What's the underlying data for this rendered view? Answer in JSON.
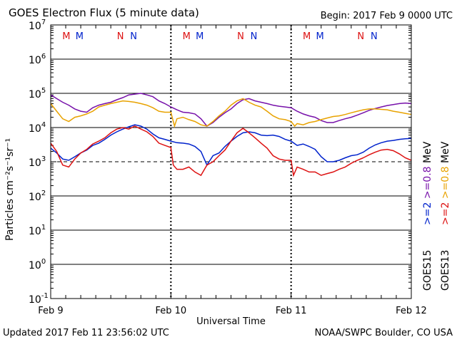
{
  "header": {
    "title": "GOES Electron Flux (5 minute data)",
    "begin": "Begin: 2017 Feb 9 0000 UTC"
  },
  "footer": {
    "updated": "Updated 2017 Feb 11 23:56:02 UTC",
    "credit": "NOAA/SWPC Boulder, CO USA"
  },
  "colors": {
    "goes15_2mev": "#0022cc",
    "goes13_2mev": "#dd1111",
    "goes15_08mev": "#7711aa",
    "goes13_08mev": "#e8a200",
    "marker_m": "#dd1111",
    "marker_m2": "#0022cc"
  },
  "chart_data": {
    "type": "line",
    "xlabel": "Universal Time",
    "ylabel": "Particles cm⁻²s⁻¹sr⁻¹",
    "y_scale": "log",
    "ylim": [
      0.1,
      10000000
    ],
    "y_ticks": [
      {
        "base": "10",
        "exp": "7"
      },
      {
        "base": "10",
        "exp": "6"
      },
      {
        "base": "10",
        "exp": "5"
      },
      {
        "base": "10",
        "exp": "4"
      },
      {
        "base": "10",
        "exp": "3"
      },
      {
        "base": "10",
        "exp": "2"
      },
      {
        "base": "10",
        "exp": "1"
      },
      {
        "base": "10",
        "exp": "0"
      },
      {
        "base": "10",
        "exp": "-1"
      }
    ],
    "xlim": [
      "2017-02-09",
      "2017-02-12"
    ],
    "x_ticks": [
      "Feb 9",
      "Feb 10",
      "Feb 11",
      "Feb 12"
    ],
    "threshold": 1000,
    "grid": true,
    "day_markers": [
      "M",
      "M",
      "N",
      "N"
    ],
    "legend": {
      "goes15": "GOES15",
      "goes13": "GOES13",
      "goes15_2": ">=2",
      "goes13_2": ">=2",
      "goes15_08": ">=0.8",
      "goes13_08": ">=0.8",
      "unit": "MeV"
    },
    "series": [
      {
        "key": "goes15_2mev",
        "x": [
          0,
          0.05,
          0.1,
          0.15,
          0.2,
          0.25,
          0.3,
          0.35,
          0.4,
          0.45,
          0.5,
          0.55,
          0.6,
          0.65,
          0.7,
          0.75,
          0.8,
          0.85,
          0.9,
          0.95,
          1.0,
          1.05,
          1.1,
          1.15,
          1.2,
          1.25,
          1.3,
          1.35,
          1.4,
          1.45,
          1.5,
          1.55,
          1.6,
          1.65,
          1.7,
          1.75,
          1.8,
          1.85,
          1.9,
          1.95,
          2.0,
          2.05,
          2.1,
          2.15,
          2.2,
          2.25,
          2.3,
          2.35,
          2.4,
          2.45,
          2.5,
          2.55,
          2.6,
          2.65,
          2.7,
          2.75,
          2.8,
          2.85,
          2.9,
          2.95,
          3.0
        ],
        "y": [
          2500,
          1800,
          1200,
          1100,
          1400,
          1800,
          2200,
          3000,
          3500,
          4500,
          6000,
          7500,
          9000,
          10500,
          12000,
          11000,
          9000,
          6500,
          5000,
          4500,
          4000,
          3600,
          3500,
          3300,
          2800,
          2000,
          800,
          1500,
          1800,
          2800,
          4000,
          5500,
          7000,
          7500,
          7000,
          6000,
          5800,
          6000,
          5500,
          4500,
          4000,
          3000,
          3300,
          2800,
          2300,
          1400,
          1000,
          1000,
          1100,
          1300,
          1500,
          1600,
          1900,
          2500,
          3100,
          3600,
          4000,
          4200,
          4500,
          4700,
          4800
        ]
      },
      {
        "key": "goes13_2mev",
        "x": [
          0,
          0.05,
          0.1,
          0.15,
          0.2,
          0.25,
          0.3,
          0.35,
          0.4,
          0.45,
          0.5,
          0.55,
          0.6,
          0.65,
          0.7,
          0.75,
          0.8,
          0.85,
          0.9,
          0.95,
          1.0,
          1.02,
          1.05,
          1.1,
          1.15,
          1.2,
          1.25,
          1.3,
          1.35,
          1.4,
          1.45,
          1.5,
          1.55,
          1.6,
          1.65,
          1.7,
          1.75,
          1.8,
          1.85,
          1.9,
          1.95,
          2.0,
          2.02,
          2.05,
          2.1,
          2.15,
          2.2,
          2.25,
          2.3,
          2.35,
          2.4,
          2.45,
          2.5,
          2.55,
          2.6,
          2.65,
          2.7,
          2.75,
          2.8,
          2.85,
          2.9,
          2.95,
          3.0
        ],
        "y": [
          3500,
          2000,
          800,
          700,
          1200,
          1800,
          2300,
          3300,
          4000,
          5000,
          7000,
          9000,
          10000,
          9000,
          11000,
          9000,
          7500,
          5500,
          3500,
          3000,
          2600,
          800,
          600,
          600,
          700,
          500,
          400,
          800,
          1000,
          1500,
          2200,
          4000,
          7000,
          9500,
          7000,
          5000,
          3500,
          2500,
          1500,
          1200,
          1100,
          1100,
          400,
          700,
          600,
          500,
          500,
          400,
          450,
          500,
          600,
          700,
          900,
          1100,
          1300,
          1600,
          1900,
          2200,
          2300,
          2100,
          1700,
          1300,
          1100
        ]
      },
      {
        "key": "goes15_08mev",
        "x": [
          0,
          0.05,
          0.1,
          0.15,
          0.2,
          0.25,
          0.3,
          0.35,
          0.4,
          0.45,
          0.5,
          0.55,
          0.6,
          0.65,
          0.7,
          0.75,
          0.8,
          0.85,
          0.9,
          0.95,
          1.0,
          1.05,
          1.1,
          1.15,
          1.2,
          1.25,
          1.3,
          1.35,
          1.4,
          1.45,
          1.5,
          1.55,
          1.6,
          1.65,
          1.7,
          1.75,
          1.8,
          1.85,
          1.9,
          1.95,
          2.0,
          2.05,
          2.1,
          2.15,
          2.2,
          2.25,
          2.3,
          2.35,
          2.4,
          2.45,
          2.5,
          2.55,
          2.6,
          2.65,
          2.7,
          2.75,
          2.8,
          2.85,
          2.9,
          2.95,
          3.0
        ],
        "y": [
          90000,
          70000,
          55000,
          45000,
          35000,
          30000,
          28000,
          38000,
          45000,
          50000,
          55000,
          65000,
          75000,
          90000,
          95000,
          100000,
          90000,
          80000,
          60000,
          50000,
          40000,
          33000,
          28000,
          27000,
          25000,
          18000,
          11000,
          14000,
          20000,
          27000,
          35000,
          50000,
          65000,
          70000,
          60000,
          55000,
          50000,
          45000,
          42000,
          40000,
          38000,
          30000,
          25000,
          22000,
          20000,
          16000,
          14000,
          14000,
          16000,
          18000,
          20000,
          23000,
          27000,
          32000,
          36000,
          40000,
          44000,
          47000,
          50000,
          52000,
          50000
        ]
      },
      {
        "key": "goes13_08mev",
        "x": [
          0,
          0.05,
          0.1,
          0.15,
          0.2,
          0.25,
          0.3,
          0.35,
          0.4,
          0.45,
          0.5,
          0.55,
          0.6,
          0.65,
          0.7,
          0.75,
          0.8,
          0.85,
          0.9,
          0.95,
          1.0,
          1.03,
          1.05,
          1.1,
          1.15,
          1.2,
          1.25,
          1.3,
          1.35,
          1.4,
          1.45,
          1.5,
          1.55,
          1.6,
          1.65,
          1.7,
          1.75,
          1.8,
          1.85,
          1.9,
          1.95,
          2.0,
          2.03,
          2.05,
          2.1,
          2.15,
          2.2,
          2.25,
          2.3,
          2.35,
          2.4,
          2.45,
          2.5,
          2.55,
          2.6,
          2.65,
          2.7,
          2.75,
          2.8,
          2.85,
          2.9,
          2.95,
          3.0
        ],
        "y": [
          50000,
          30000,
          18000,
          15000,
          20000,
          22000,
          25000,
          30000,
          40000,
          45000,
          50000,
          55000,
          60000,
          58000,
          55000,
          50000,
          45000,
          38000,
          30000,
          28000,
          28000,
          11000,
          18000,
          20000,
          17000,
          15000,
          12000,
          11000,
          15000,
          22000,
          30000,
          45000,
          60000,
          70000,
          55000,
          45000,
          40000,
          30000,
          22000,
          18000,
          17000,
          15000,
          11000,
          13000,
          12000,
          14000,
          15000,
          17000,
          19000,
          21000,
          22000,
          24000,
          27000,
          30000,
          33000,
          35000,
          35000,
          34000,
          33000,
          30000,
          28000,
          26000,
          24000
        ]
      }
    ]
  }
}
